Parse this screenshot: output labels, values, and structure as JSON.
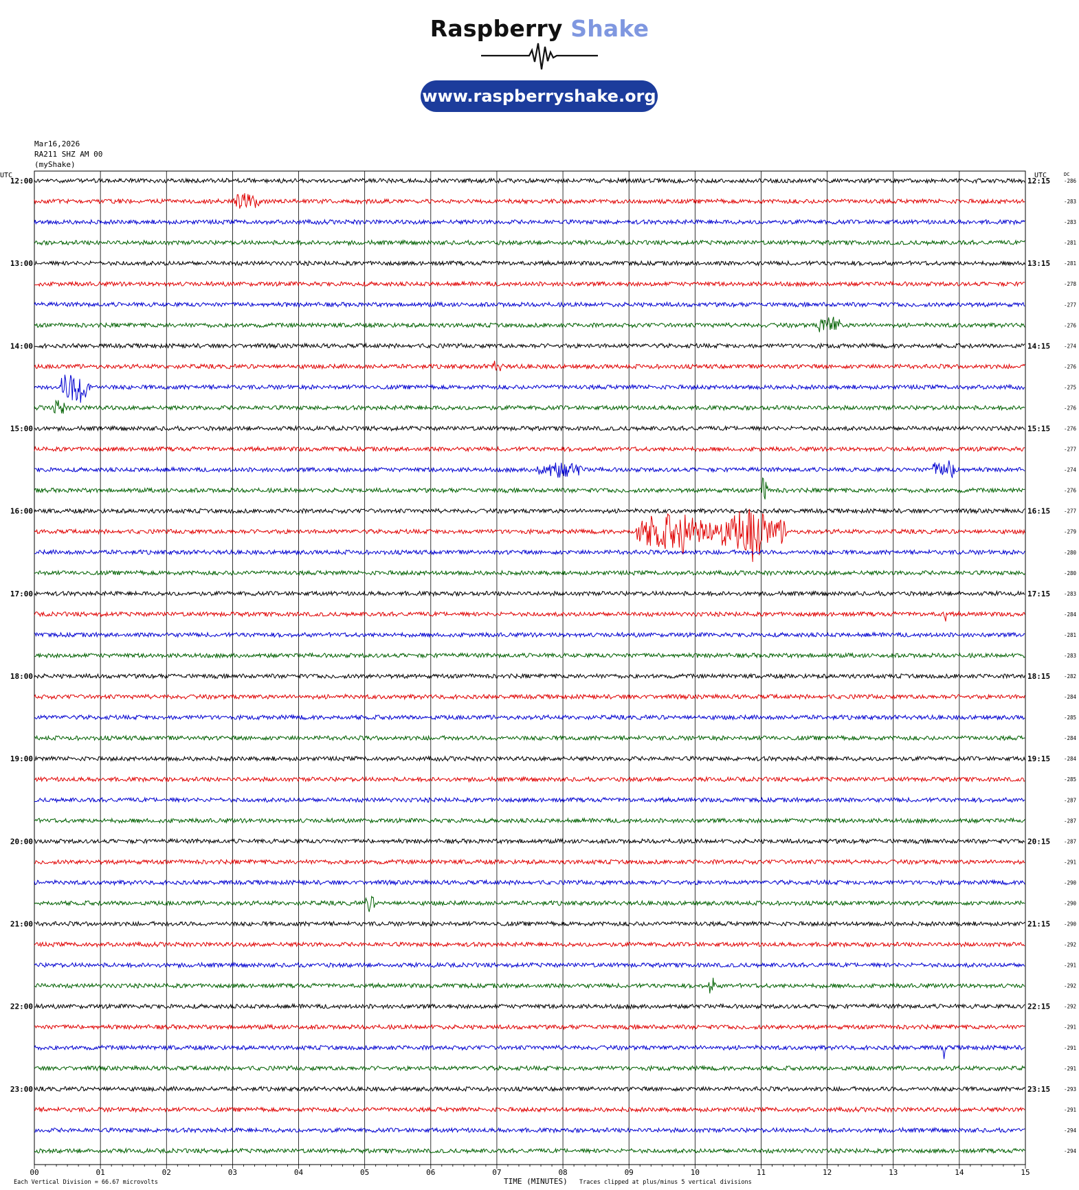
{
  "branding": {
    "name_part1": "Raspberry",
    "name_part2": "Shake",
    "url": "www.raspberryshake.org"
  },
  "header": {
    "date": "Mar16,2026",
    "station": "RA211 SHZ AM 00",
    "owner": "(myShake)"
  },
  "chart_data": {
    "type": "line",
    "title": "",
    "left_axis_label": "UTC",
    "right_axis_label": "UTC",
    "dc_label": "DC",
    "xlabel": "TIME (MINUTES)",
    "xlim": [
      0,
      15
    ],
    "x_ticks": [
      "00",
      "01",
      "02",
      "03",
      "04",
      "05",
      "06",
      "07",
      "08",
      "09",
      "10",
      "11",
      "12",
      "13",
      "14",
      "15"
    ],
    "left_hour_labels": [
      "12:00",
      "13:00",
      "14:00",
      "15:00",
      "16:00",
      "17:00",
      "18:00",
      "19:00",
      "20:00",
      "21:00",
      "22:00",
      "23:00"
    ],
    "right_hour_labels": [
      "12:15",
      "13:15",
      "14:15",
      "15:15",
      "16:15",
      "17:15",
      "18:15",
      "19:15",
      "20:15",
      "21:15",
      "22:15",
      "23:15"
    ],
    "trace_colors": [
      "#000000",
      "#e00000",
      "#0000d0",
      "#006000"
    ],
    "dc_offsets": [
      -286,
      -283,
      -283,
      -281,
      -281,
      -278,
      -277,
      -276,
      -274,
      -276,
      -275,
      -276,
      -276,
      -277,
      -274,
      -276,
      -277,
      -279,
      -280,
      -280,
      -283,
      -284,
      -281,
      -283,
      -282,
      -284,
      -285,
      -284,
      -284,
      -285,
      -287,
      -287,
      -287,
      -291,
      -290,
      -290,
      -290,
      -292,
      -291,
      -292,
      -292,
      -291,
      -291,
      -291,
      -293,
      -291,
      -294,
      -294
    ],
    "events": [
      {
        "row": 1,
        "minute_start": 3.0,
        "minute_end": 3.4,
        "amplitude": 0.45
      },
      {
        "row": 7,
        "minute_start": 11.85,
        "minute_end": 12.2,
        "amplitude": 0.4
      },
      {
        "row": 9,
        "minute_start": 6.9,
        "minute_end": 7.1,
        "amplitude": 0.25
      },
      {
        "row": 10,
        "minute_start": 0.4,
        "minute_end": 0.85,
        "amplitude": 0.85
      },
      {
        "row": 11,
        "minute_start": 0.25,
        "minute_end": 0.45,
        "amplitude": 0.4
      },
      {
        "row": 14,
        "minute_start": 7.6,
        "minute_end": 8.3,
        "amplitude": 0.35
      },
      {
        "row": 14,
        "minute_start": 13.6,
        "minute_end": 14.0,
        "amplitude": 0.4
      },
      {
        "row": 15,
        "minute_start": 11.0,
        "minute_end": 11.1,
        "amplitude": 0.7
      },
      {
        "row": 17,
        "minute_start": 9.1,
        "minute_end": 10.0,
        "amplitude": 0.9
      },
      {
        "row": 17,
        "minute_start": 9.8,
        "minute_end": 9.85,
        "amplitude": 2.4
      },
      {
        "row": 17,
        "minute_start": 10.0,
        "minute_end": 11.4,
        "amplitude": 0.8
      },
      {
        "row": 17,
        "minute_start": 10.65,
        "minute_end": 11.1,
        "amplitude": 1.4
      },
      {
        "row": 21,
        "minute_start": 13.75,
        "minute_end": 13.8,
        "amplitude": 0.45
      },
      {
        "row": 35,
        "minute_start": 5.0,
        "minute_end": 5.15,
        "amplitude": 0.35
      },
      {
        "row": 39,
        "minute_start": 10.2,
        "minute_end": 10.3,
        "amplitude": 0.5
      },
      {
        "row": 42,
        "minute_start": 13.75,
        "minute_end": 13.8,
        "amplitude": 0.5
      }
    ],
    "footer_left": "Each Vertical Division =   66.67 microvolts",
    "footer_right": "Traces clipped at plus/minus 5 vertical divisions"
  }
}
